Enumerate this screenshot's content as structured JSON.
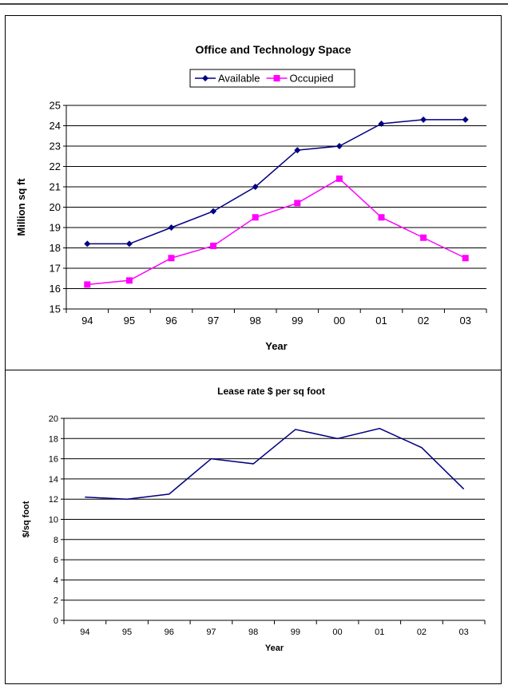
{
  "chart_data": [
    {
      "type": "line",
      "title": "Office and Technology Space",
      "xlabel": "Year",
      "ylabel": "Million sq ft",
      "categories": [
        "94",
        "95",
        "96",
        "97",
        "98",
        "99",
        "00",
        "01",
        "02",
        "03"
      ],
      "ylim": [
        15,
        25
      ],
      "yticks": [
        15,
        16,
        17,
        18,
        19,
        20,
        21,
        22,
        23,
        24,
        25
      ],
      "grid": true,
      "legend": "top-center",
      "series": [
        {
          "name": "Available",
          "color": "#000080",
          "marker": "diamond",
          "values": [
            18.2,
            18.2,
            19.0,
            19.8,
            21.0,
            22.8,
            23.0,
            24.1,
            24.3,
            24.3
          ]
        },
        {
          "name": "Occupied",
          "color": "#ff00ff",
          "marker": "square",
          "values": [
            16.2,
            16.4,
            17.5,
            18.1,
            19.5,
            20.2,
            21.4,
            19.5,
            18.5,
            17.5
          ]
        }
      ]
    },
    {
      "type": "line",
      "title": "Lease rate $ per sq foot",
      "xlabel": "Year",
      "ylabel": "$/sq foot",
      "categories": [
        "94",
        "95",
        "96",
        "97",
        "98",
        "99",
        "00",
        "01",
        "02",
        "03"
      ],
      "ylim": [
        0,
        20
      ],
      "yticks": [
        0,
        2,
        4,
        6,
        8,
        10,
        12,
        14,
        16,
        18,
        20
      ],
      "grid": true,
      "legend": "none",
      "series": [
        {
          "color": "#000080",
          "values": [
            12.2,
            12.0,
            12.5,
            16.0,
            15.5,
            18.9,
            18.0,
            19.0,
            17.1,
            13.0
          ]
        }
      ]
    }
  ]
}
